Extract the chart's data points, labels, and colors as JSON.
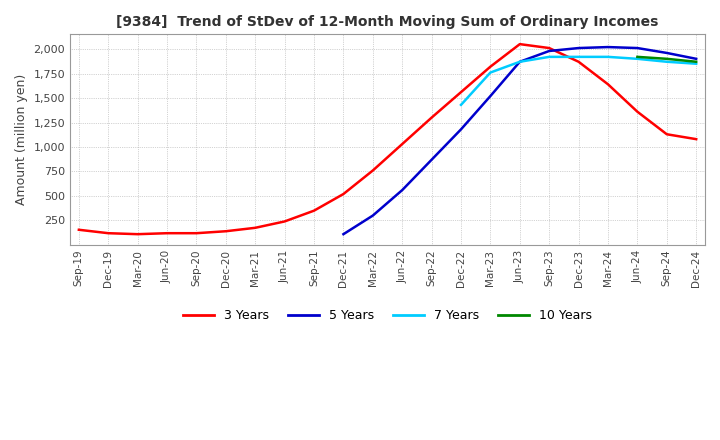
{
  "title": "[9384]  Trend of StDev of 12-Month Moving Sum of Ordinary Incomes",
  "ylabel": "Amount (million yen)",
  "title_color": "#333333",
  "background_color": "#ffffff",
  "plot_bg_color": "#ffffff",
  "grid_color": "#aaaaaa",
  "ylim": [
    0,
    2150
  ],
  "yticks": [
    250,
    500,
    750,
    1000,
    1250,
    1500,
    1750,
    2000
  ],
  "legend": [
    "3 Years",
    "5 Years",
    "7 Years",
    "10 Years"
  ],
  "line_colors": [
    "#ff0000",
    "#0000cc",
    "#00ccff",
    "#008800"
  ],
  "x_labels": [
    "Sep-19",
    "Dec-19",
    "Mar-20",
    "Jun-20",
    "Sep-20",
    "Dec-20",
    "Mar-21",
    "Jun-21",
    "Sep-21",
    "Dec-21",
    "Mar-22",
    "Jun-22",
    "Sep-22",
    "Dec-22",
    "Mar-23",
    "Jun-23",
    "Sep-23",
    "Dec-23",
    "Mar-24",
    "Jun-24",
    "Sep-24",
    "Dec-24"
  ],
  "series_3y": [
    155,
    120,
    110,
    120,
    120,
    140,
    175,
    240,
    350,
    520,
    760,
    1030,
    1300,
    1560,
    1820,
    2050,
    2010,
    1870,
    1640,
    1360,
    1130,
    1080
  ],
  "series_5y": [
    null,
    null,
    null,
    null,
    null,
    null,
    null,
    null,
    null,
    110,
    300,
    560,
    870,
    1180,
    1520,
    1870,
    1980,
    2010,
    2020,
    2010,
    1960,
    1900
  ],
  "series_7y": [
    null,
    null,
    null,
    null,
    null,
    null,
    null,
    null,
    null,
    null,
    null,
    null,
    null,
    1430,
    1760,
    1870,
    1920,
    1920,
    1920,
    1900,
    1870,
    1850
  ],
  "series_10y": [
    null,
    null,
    null,
    null,
    null,
    null,
    null,
    null,
    null,
    null,
    null,
    null,
    null,
    null,
    null,
    null,
    null,
    null,
    null,
    1920,
    1900,
    1870
  ]
}
